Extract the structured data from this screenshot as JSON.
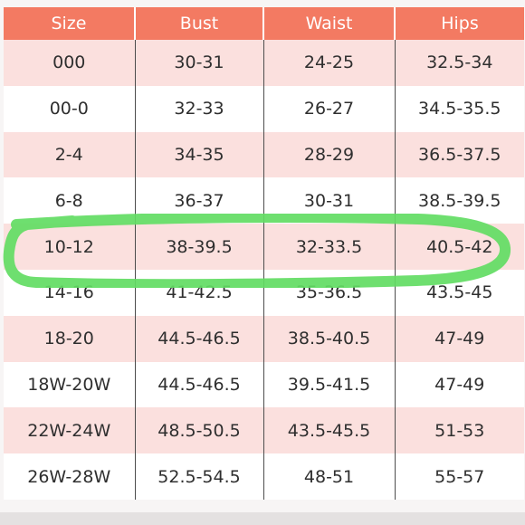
{
  "headers": [
    "Size",
    "Bust",
    "Waist",
    "Hips"
  ],
  "rows": [
    {
      "size": "000",
      "bust": "30-31",
      "waist": "24-25",
      "hips": "32.5-34"
    },
    {
      "size": "00-0",
      "bust": "32-33",
      "waist": "26-27",
      "hips": "34.5-35.5"
    },
    {
      "size": "2-4",
      "bust": "34-35",
      "waist": "28-29",
      "hips": "36.5-37.5"
    },
    {
      "size": "6-8",
      "bust": "36-37",
      "waist": "30-31",
      "hips": "38.5-39.5"
    },
    {
      "size": "10-12",
      "bust": "38-39.5",
      "waist": "32-33.5",
      "hips": "40.5-42"
    },
    {
      "size": "14-16",
      "bust": "41-42.5",
      "waist": "35-36.5",
      "hips": "43.5-45"
    },
    {
      "size": "18-20",
      "bust": "44.5-46.5",
      "waist": "38.5-40.5",
      "hips": "47-49"
    },
    {
      "size": "18W-20W",
      "bust": "44.5-46.5",
      "waist": "39.5-41.5",
      "hips": "47-49"
    },
    {
      "size": "22W-24W",
      "bust": "48.5-50.5",
      "waist": "43.5-45.5",
      "hips": "51-53"
    },
    {
      "size": "26W-28W",
      "bust": "52.5-54.5",
      "waist": "48-51",
      "hips": "55-57"
    }
  ],
  "highlighted_row": "10-12",
  "colors": {
    "header_bg": "#f37a62",
    "header_text": "#ffffff",
    "row_tint": "#fbe0de",
    "highlight_marker": "#62dc63"
  }
}
